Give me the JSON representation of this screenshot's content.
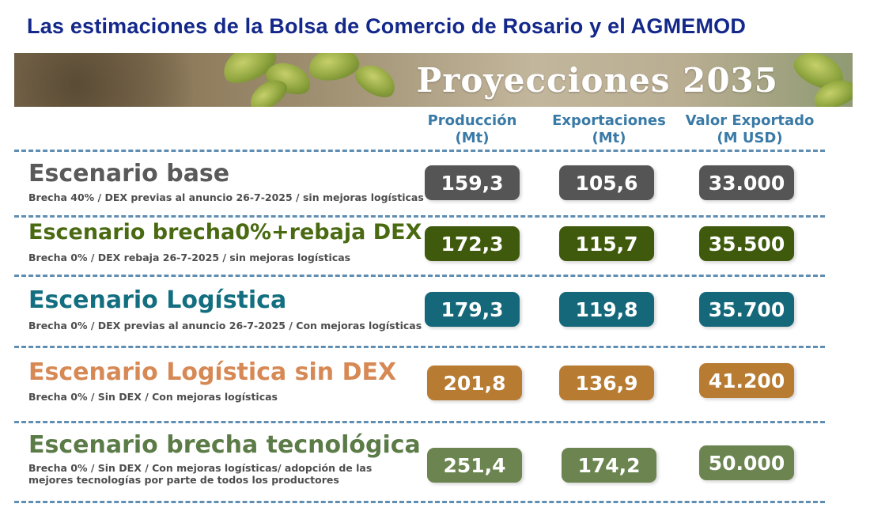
{
  "title": "Las estimaciones de la Bolsa de Comercio de Rosario y el AGMEMOD",
  "banner_title": "Proyecciones 2035",
  "columns": [
    {
      "line1": "Producción",
      "line2": "(Mt)"
    },
    {
      "line1": "Exportaciones",
      "line2": "(Mt)"
    },
    {
      "line1": "Valor Exportado",
      "line2": "(M USD)"
    }
  ],
  "scenarios": [
    {
      "name": "Escenario base",
      "desc": "Brecha 40% / DEX previas al anuncio 26-7-2025 / sin mejoras logísticas",
      "desc2": "",
      "color": "#5a5a5a",
      "pill_color": "#555555",
      "values": [
        "159,3",
        "105,6",
        "33.000"
      ]
    },
    {
      "name": "Escenario brecha0%+rebaja DEX",
      "desc": "Brecha 0% / DEX rebaja 26-7-2025 / sin mejoras logísticas",
      "desc2": "",
      "color": "#4a6a12",
      "pill_color": "#3f5a0c",
      "values": [
        "172,3",
        "115,7",
        "35.500"
      ]
    },
    {
      "name": "Escenario Logística",
      "desc": "Brecha 0% / DEX previas al anuncio 26-7-2025 / Con mejoras logísticas",
      "desc2": "",
      "color": "#136f80",
      "pill_color": "#14687a",
      "values": [
        "179,3",
        "119,8",
        "35.700"
      ]
    },
    {
      "name": "Escenario Logística sin DEX",
      "desc": "Brecha 0% / Sin DEX / Con mejoras logísticas",
      "desc2": "",
      "color": "#d68955",
      "pill_color": "#b77b32",
      "values": [
        "201,8",
        "136,9",
        "41.200"
      ]
    },
    {
      "name": "Escenario brecha tecnológica",
      "desc": "Brecha 0% / Sin DEX / Con mejoras logísticas/ adopción de las",
      "desc2": "mejores tecnologías por parte de todos los productores",
      "color": "#5b7b47",
      "pill_color": "#6b8450",
      "values": [
        "251,4",
        "174,2",
        "50.000"
      ]
    }
  ]
}
